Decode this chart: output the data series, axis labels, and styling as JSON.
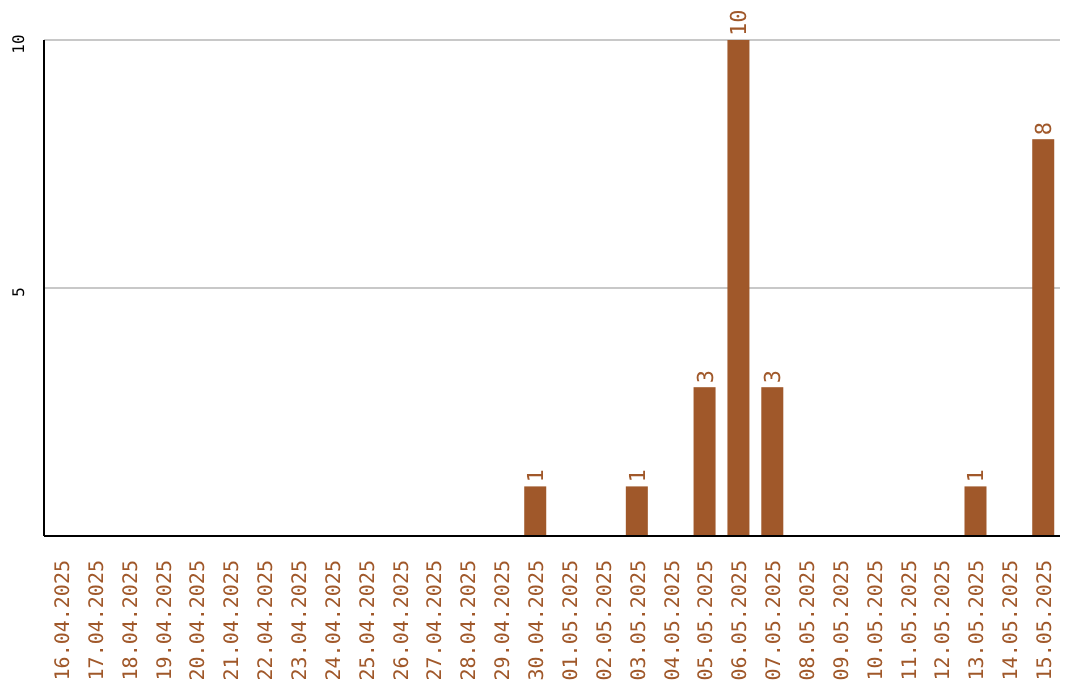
{
  "chart_data": {
    "type": "bar",
    "categories": [
      "16.04.2025",
      "17.04.2025",
      "18.04.2025",
      "19.04.2025",
      "20.04.2025",
      "21.04.2025",
      "22.04.2025",
      "23.04.2025",
      "24.04.2025",
      "25.04.2025",
      "26.04.2025",
      "27.04.2025",
      "28.04.2025",
      "29.04.2025",
      "30.04.2025",
      "01.05.2025",
      "02.05.2025",
      "03.05.2025",
      "04.05.2025",
      "05.05.2025",
      "06.05.2025",
      "07.05.2025",
      "08.05.2025",
      "09.05.2025",
      "10.05.2025",
      "11.05.2025",
      "12.05.2025",
      "13.05.2025",
      "14.05.2025",
      "15.05.2025"
    ],
    "values": [
      0,
      0,
      0,
      0,
      0,
      0,
      0,
      0,
      0,
      0,
      0,
      0,
      0,
      0,
      1,
      0,
      0,
      1,
      0,
      3,
      10,
      3,
      0,
      0,
      0,
      0,
      0,
      1,
      0,
      8
    ],
    "value_labels": [
      null,
      null,
      null,
      null,
      null,
      null,
      null,
      null,
      null,
      null,
      null,
      null,
      null,
      null,
      "1",
      null,
      null,
      "1",
      null,
      "3",
      "10",
      "3",
      null,
      null,
      null,
      null,
      null,
      "1",
      null,
      "8"
    ],
    "color": "#a0582a",
    "ylim": [
      0,
      10
    ],
    "yticks": [
      5,
      10
    ],
    "grid": "y"
  }
}
